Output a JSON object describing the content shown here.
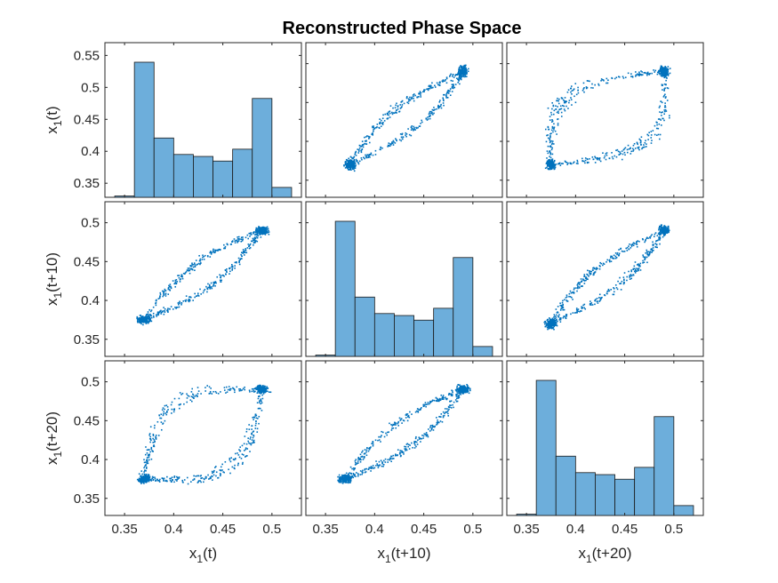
{
  "chart_data": {
    "type": "scatter",
    "layout": "scatter-matrix",
    "title": "Reconstructed Phase Space",
    "variables": [
      "x1(t)",
      "x1(t+10)",
      "x1(t+20)"
    ],
    "axis_labels": [
      {
        "base": "x",
        "sub": "1",
        "suffix": "(t)"
      },
      {
        "base": "x",
        "sub": "1",
        "suffix": "(t+10)"
      },
      {
        "base": "x",
        "sub": "1",
        "suffix": "(t+20)"
      }
    ],
    "xlim": [
      0.33,
      0.53
    ],
    "ylim_scatter": [
      0.328,
      0.527
    ],
    "xticks": [
      0.35,
      0.4,
      0.45,
      0.5
    ],
    "xtick_labels": [
      "0.35",
      "0.4",
      "0.45",
      "0.5"
    ],
    "yticks_row1": [
      0.35,
      0.4,
      0.45,
      0.5,
      0.55
    ],
    "yticks_row1_labels": [
      "0.35",
      "0.4",
      "0.45",
      "0.5",
      "0.55"
    ],
    "yticks": [
      0.35,
      0.4,
      0.45,
      0.5
    ],
    "ytick_labels": [
      "0.35",
      "0.4",
      "0.45",
      "0.5"
    ],
    "ylim_row1": [
      0.328,
      0.57
    ],
    "attractor": {
      "low_cluster": [
        0.37,
        0.375
      ],
      "high_cluster": [
        0.49,
        0.49
      ],
      "lag10_half_width": 0.013,
      "lag20_half_width": 0.04
    },
    "histogram": {
      "bin_edges": [
        0.34,
        0.36,
        0.38,
        0.4,
        0.42,
        0.44,
        0.46,
        0.48,
        0.5,
        0.52
      ],
      "counts": [
        2,
        205,
        90,
        65,
        62,
        55,
        73,
        150,
        15
      ]
    },
    "colors": {
      "marker": "#0072BD",
      "bar_fill": "#6DAEDB",
      "bar_edge": "#1a1a1a",
      "axes": "#262626"
    }
  }
}
